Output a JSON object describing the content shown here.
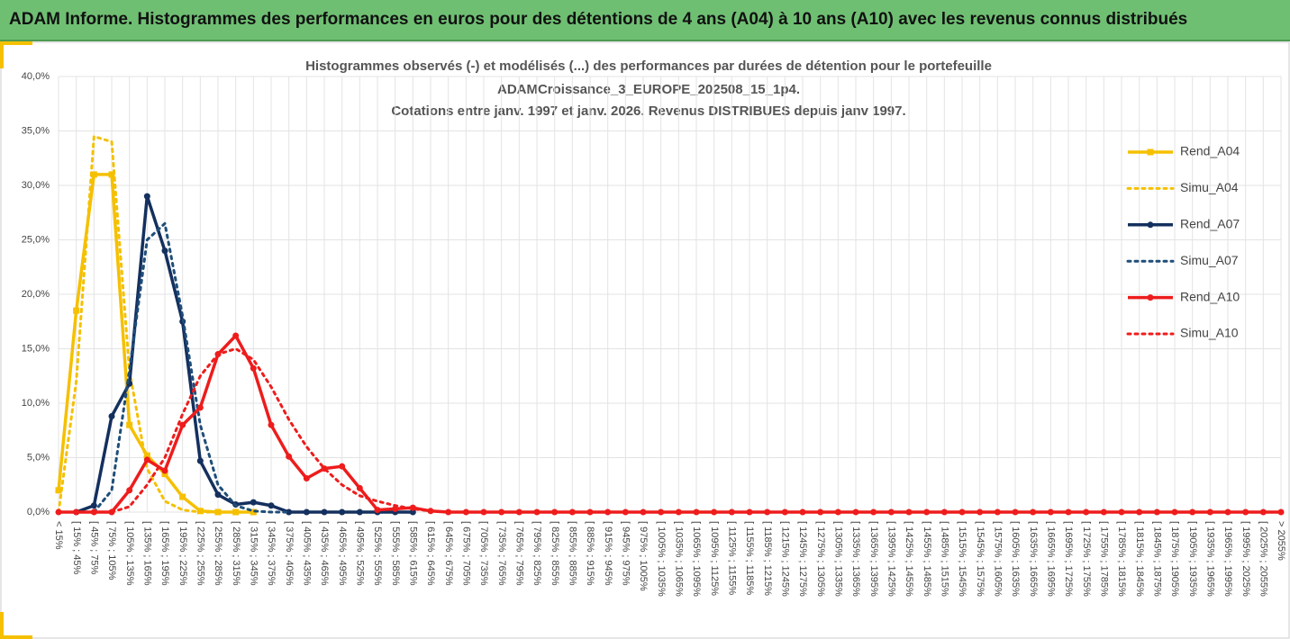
{
  "header": {
    "title": "ADAM Informe. Histogrammes des performances en euros pour des détentions de 4 ans (A04) à 10 ans (A10) avec les revenus connus distribués"
  },
  "chart_data": {
    "type": "line",
    "title": [
      "Histogrammes observés (-) et modélisés (...) des performances par durées de détention pour le portefeuille",
      "ADAMCroissance_3_EUROPE_202508_15_1p4.",
      "Cotations entre janv. 1997 et janv. 2026. Revenus DISTRIBUES depuis janv 1997."
    ],
    "categories": [
      "< 15%",
      "[ 15% ; 45%",
      "[ 45% ; 75%",
      "[ 75% ; 105%",
      "[ 105% ; 135%",
      "[ 135% ; 165%",
      "[ 165% ; 195%",
      "[ 195% ; 225%",
      "[ 225% ; 255%",
      "[ 255% ; 285%",
      "[ 285% ; 315%",
      "[ 315% ; 345%",
      "[ 345% ; 375%",
      "[ 375% ; 405%",
      "[ 405% ; 435%",
      "[ 435% ; 465%",
      "[ 465% ; 495%",
      "[ 495% ; 525%",
      "[ 525% ; 555%",
      "[ 555% ; 585%",
      "[ 585% ; 615%",
      "[ 615% ; 645%",
      "[ 645% ; 675%",
      "[ 675% ; 705%",
      "[ 705% ; 735%",
      "[ 735% ; 765%",
      "[ 765% ; 795%",
      "[ 795% ; 825%",
      "[ 825% ; 855%",
      "[ 855% ; 885%",
      "[ 885% ; 915%",
      "[ 915% ; 945%",
      "[ 945% ; 975%",
      "[ 975% ; 1005%",
      "[ 1005% ; 1035%",
      "[ 1035% ; 1065%",
      "[ 1065% ; 1095%",
      "[ 1095% ; 1125%",
      "[ 1125% ; 1155%",
      "[ 1155% ; 1185%",
      "[ 1185% ; 1215%",
      "[ 1215% ; 1245%",
      "[ 1245% ; 1275%",
      "[ 1275% ; 1305%",
      "[ 1305% ; 1335%",
      "[ 1335% ; 1365%",
      "[ 1365% ; 1395%",
      "[ 1395% ; 1425%",
      "[ 1425% ; 1455%",
      "[ 1455% ; 1485%",
      "[ 1485% ; 1515%",
      "[ 1515% ; 1545%",
      "[ 1545% ; 1575%",
      "[ 1575% ; 1605%",
      "[ 1605% ; 1635%",
      "[ 1635% ; 1665%",
      "[ 1665% ; 1695%",
      "[ 1695% ; 1725%",
      "[ 1725% ; 1755%",
      "[ 1755% ; 1785%",
      "[ 1785% ; 1815%",
      "[ 1815% ; 1845%",
      "[ 1845% ; 1875%",
      "[ 1875% ; 1905%",
      "[ 1905% ; 1935%",
      "[ 1935% ; 1965%",
      "[ 1965% ; 1995%",
      "[ 1995% ; 2025%",
      "[ 2025% ; 2055%",
      "> 2055%"
    ],
    "ylim": [
      0,
      40
    ],
    "yticks": [
      {
        "value": 0,
        "label": "0,0%"
      },
      {
        "value": 5,
        "label": "5,0%"
      },
      {
        "value": 10,
        "label": "10,0%"
      },
      {
        "value": 15,
        "label": "15,0%"
      },
      {
        "value": 20,
        "label": "20,0%"
      },
      {
        "value": 25,
        "label": "25,0%"
      },
      {
        "value": 30,
        "label": "30,0%"
      },
      {
        "value": 35,
        "label": "35,0%"
      },
      {
        "value": 40,
        "label": "40,0%"
      }
    ],
    "grid": true,
    "legend": "right",
    "series": [
      {
        "name": "Rend_A04",
        "color": "#f5c000",
        "style": "solid",
        "marker": "square",
        "values": [
          2.0,
          18.5,
          31.0,
          31.0,
          8.0,
          5.2,
          3.5,
          1.4,
          0.1,
          0,
          0,
          0,
          null,
          null,
          null,
          null,
          null,
          null,
          null,
          null,
          null,
          null,
          null,
          null,
          null,
          null,
          null,
          null,
          null,
          null,
          null,
          null,
          null,
          null,
          null,
          null,
          null,
          null,
          null,
          null,
          null,
          null,
          null,
          null,
          null,
          null,
          null,
          null,
          null,
          null,
          null,
          null,
          null,
          null,
          null,
          null,
          null,
          null,
          null,
          null,
          null,
          null,
          null,
          null,
          null,
          null,
          null,
          null,
          null,
          null
        ]
      },
      {
        "name": "Simu_A04",
        "color": "#f5c000",
        "style": "dotted",
        "marker": null,
        "values": [
          0,
          12,
          34.5,
          34,
          13,
          4,
          1,
          0.2,
          0,
          0,
          0,
          0,
          null,
          null,
          null,
          null,
          null,
          null,
          null,
          null,
          null,
          null,
          null,
          null,
          null,
          null,
          null,
          null,
          null,
          null,
          null,
          null,
          null,
          null,
          null,
          null,
          null,
          null,
          null,
          null,
          null,
          null,
          null,
          null,
          null,
          null,
          null,
          null,
          null,
          null,
          null,
          null,
          null,
          null,
          null,
          null,
          null,
          null,
          null,
          null,
          null,
          null,
          null,
          null,
          null,
          null,
          null,
          null,
          null,
          null
        ]
      },
      {
        "name": "Rend_A07",
        "color": "#14305e",
        "style": "solid",
        "marker": "circle",
        "values": [
          null,
          0,
          0.6,
          8.8,
          11.8,
          29.0,
          24.0,
          17.5,
          4.7,
          1.6,
          0.7,
          0.9,
          0.6,
          0,
          0,
          0,
          0,
          0,
          0,
          0,
          0,
          null,
          null,
          null,
          null,
          null,
          null,
          null,
          null,
          null,
          null,
          null,
          null,
          null,
          null,
          null,
          null,
          null,
          null,
          null,
          null,
          null,
          null,
          null,
          null,
          null,
          null,
          null,
          null,
          null,
          null,
          null,
          null,
          null,
          null,
          null,
          null,
          null,
          null,
          null,
          null,
          null,
          null,
          null,
          null,
          null,
          null,
          null,
          null,
          null
        ]
      },
      {
        "name": "Simu_A07",
        "color": "#1f4e79",
        "style": "dotted",
        "marker": null,
        "values": [
          null,
          null,
          0,
          2,
          13,
          25,
          26.5,
          18,
          8,
          2.5,
          0.6,
          0.1,
          0,
          0,
          null,
          null,
          null,
          null,
          null,
          null,
          null,
          null,
          null,
          null,
          null,
          null,
          null,
          null,
          null,
          null,
          null,
          null,
          null,
          null,
          null,
          null,
          null,
          null,
          null,
          null,
          null,
          null,
          null,
          null,
          null,
          null,
          null,
          null,
          null,
          null,
          null,
          null,
          null,
          null,
          null,
          null,
          null,
          null,
          null,
          null,
          null,
          null,
          null,
          null,
          null,
          null,
          null,
          null,
          null,
          null
        ]
      },
      {
        "name": "Rend_A10",
        "color": "#ee1c1c",
        "style": "solid",
        "marker": "circle",
        "values": [
          0,
          0,
          0,
          0,
          2.0,
          4.8,
          3.8,
          8.0,
          9.6,
          14.5,
          16.2,
          13.2,
          8.0,
          5.1,
          3.1,
          4.0,
          4.2,
          2.2,
          0.2,
          0.3,
          0.4,
          0.1,
          0,
          0,
          0,
          0,
          0,
          0,
          0,
          0,
          0,
          0,
          0,
          0,
          0,
          0,
          0,
          0,
          0,
          0,
          0,
          0,
          0,
          0,
          0,
          0,
          0,
          0,
          0,
          0,
          0,
          0,
          0,
          0,
          0,
          0,
          0,
          0,
          0,
          0,
          0,
          0,
          0,
          0,
          0,
          0,
          0,
          0,
          0,
          0
        ]
      },
      {
        "name": "Simu_A10",
        "color": "#ee1c1c",
        "style": "dotted",
        "marker": null,
        "values": [
          null,
          null,
          null,
          0,
          0.5,
          2.5,
          5,
          9,
          12.5,
          14.5,
          15,
          14,
          11.5,
          8.5,
          6,
          4,
          2.5,
          1.5,
          1,
          0.6,
          0.3,
          0.1,
          0,
          0,
          null,
          null,
          null,
          null,
          null,
          null,
          null,
          null,
          null,
          null,
          null,
          null,
          null,
          null,
          null,
          null,
          null,
          null,
          null,
          null,
          null,
          null,
          null,
          null,
          null,
          null,
          null,
          null,
          null,
          null,
          null,
          null,
          null,
          null,
          null,
          null,
          null,
          null,
          null,
          null,
          null,
          null,
          null,
          null,
          null,
          null
        ]
      }
    ]
  }
}
